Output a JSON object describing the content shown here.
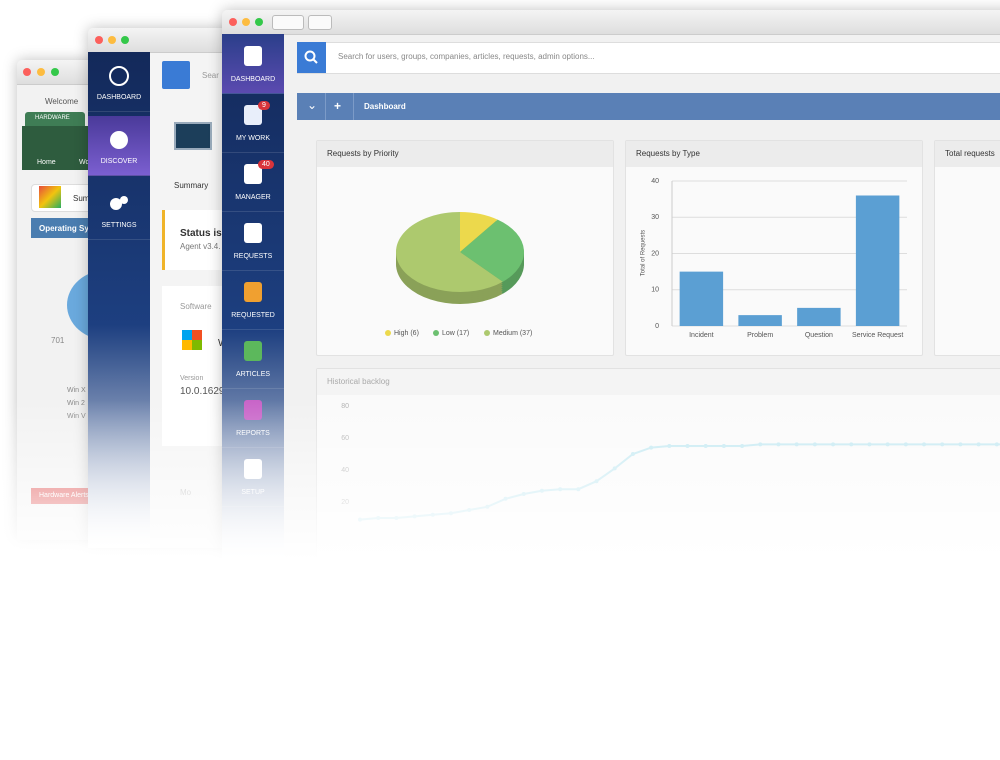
{
  "back_window": {
    "welcome": "Welcome",
    "tab": "HARDWARE",
    "nav": [
      "Home",
      "Wo"
    ],
    "summary": "Summ",
    "panel_title": "Operating Sys",
    "pie_label": "701",
    "legend": [
      "Win X",
      "Win 2",
      "Win V"
    ],
    "alert": "Hardware Alerts"
  },
  "middle_window": {
    "nav": [
      "DASHBOARD",
      "DISCOVER",
      "SETTINGS"
    ],
    "search": "Sear",
    "tab": "Summary",
    "status_title": "Status is U",
    "status_sub": "Agent v3.4.",
    "software": "Software",
    "os_name": "W",
    "version_label": "Version",
    "version": "10.0.1629",
    "extra": "Mo"
  },
  "front_window": {
    "nav": [
      {
        "label": "DASHBOARD"
      },
      {
        "label": "MY WORK",
        "badge": 9
      },
      {
        "label": "MANAGER",
        "badge": 40
      },
      {
        "label": "REQUESTS"
      },
      {
        "label": "REQUESTED"
      },
      {
        "label": "ARTICLES"
      },
      {
        "label": "REPORTS"
      },
      {
        "label": "SETUP"
      }
    ],
    "search_placeholder": "Search for users, groups, companies, articles, requests, admin options...",
    "toolbar_title": "Dashboard",
    "total_title": "Total requests"
  },
  "chart_data": [
    {
      "type": "pie",
      "title": "Requests by Priority",
      "categories": [
        "High",
        "Low",
        "Medium"
      ],
      "values": [
        6,
        17,
        37
      ],
      "legend": [
        "High (6)",
        "Low (17)",
        "Medium (37)"
      ],
      "colors": [
        "#ecd94c",
        "#6cc070",
        "#adc96e"
      ]
    },
    {
      "type": "bar",
      "title": "Requests by Type",
      "y_label": "Total of Requests",
      "categories": [
        "Incident",
        "Problem",
        "Question",
        "Service Request"
      ],
      "values": [
        15,
        3,
        5,
        36
      ],
      "color": "#5b9fd3",
      "ylim": [
        0,
        40
      ],
      "yticks": [
        0,
        10,
        20,
        30,
        40
      ],
      "grid": true
    },
    {
      "type": "line",
      "title": "Historical backlog",
      "values": [
        9,
        10,
        10,
        11,
        12,
        13,
        15,
        17,
        22,
        25,
        27,
        28,
        28,
        33,
        41,
        50,
        54,
        55,
        55,
        55,
        55,
        55,
        56,
        56,
        56,
        56,
        56,
        56,
        56,
        56,
        56,
        56,
        56,
        56,
        56,
        56,
        56
      ],
      "color": "#7fd3e8",
      "ylim": [
        0,
        80
      ],
      "yticks": [
        80,
        60,
        40,
        20
      ]
    }
  ]
}
